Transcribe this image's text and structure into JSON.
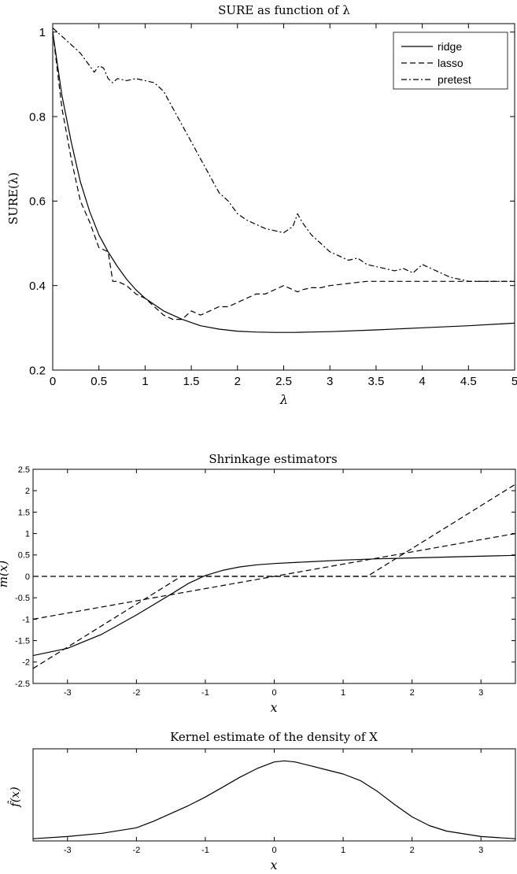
{
  "chart_data": [
    {
      "type": "line",
      "title": "SURE as function of λ",
      "xlabel": "λ",
      "ylabel": "SURE(λ)",
      "xlim": [
        0,
        5
      ],
      "ylim": [
        0.2,
        1.02
      ],
      "xticks": [
        "0",
        "0.5",
        "1",
        "1.5",
        "2",
        "2.5",
        "3",
        "3.5",
        "4",
        "4.5",
        "5"
      ],
      "yticks": [
        "0.2",
        "0.4",
        "0.6",
        "0.8",
        "1"
      ],
      "legend_position": "top-right",
      "grid": false,
      "series": [
        {
          "name": "ridge",
          "style": "solid",
          "x": [
            0,
            0.1,
            0.2,
            0.3,
            0.4,
            0.5,
            0.6,
            0.7,
            0.8,
            0.9,
            1.0,
            1.2,
            1.4,
            1.6,
            1.8,
            2.0,
            2.2,
            2.4,
            2.6,
            2.8,
            3.0,
            3.5,
            4.0,
            4.5,
            5.0
          ],
          "y": [
            1.0,
            0.85,
            0.74,
            0.645,
            0.575,
            0.52,
            0.48,
            0.445,
            0.415,
            0.39,
            0.37,
            0.34,
            0.32,
            0.305,
            0.297,
            0.292,
            0.29,
            0.289,
            0.289,
            0.29,
            0.291,
            0.295,
            0.3,
            0.305,
            0.311
          ]
        },
        {
          "name": "lasso",
          "style": "dashed",
          "x": [
            0,
            0.1,
            0.2,
            0.3,
            0.4,
            0.5,
            0.6,
            0.65,
            0.7,
            0.8,
            0.9,
            1.0,
            1.1,
            1.2,
            1.3,
            1.4,
            1.5,
            1.6,
            1.7,
            1.8,
            1.9,
            2.0,
            2.1,
            2.2,
            2.3,
            2.4,
            2.5,
            2.6,
            2.65,
            2.7,
            2.8,
            2.9,
            3.0,
            3.2,
            3.4,
            3.6,
            3.8,
            4.0,
            4.2,
            4.5,
            5.0
          ],
          "y": [
            1.0,
            0.82,
            0.7,
            0.6,
            0.55,
            0.49,
            0.48,
            0.41,
            0.41,
            0.4,
            0.38,
            0.37,
            0.35,
            0.33,
            0.32,
            0.32,
            0.34,
            0.33,
            0.34,
            0.35,
            0.35,
            0.36,
            0.37,
            0.38,
            0.38,
            0.39,
            0.4,
            0.39,
            0.385,
            0.39,
            0.395,
            0.395,
            0.4,
            0.405,
            0.41,
            0.41,
            0.41,
            0.41,
            0.41,
            0.41,
            0.41
          ]
        },
        {
          "name": "pretest",
          "style": "dashdot",
          "x": [
            0,
            0.1,
            0.2,
            0.3,
            0.4,
            0.45,
            0.5,
            0.55,
            0.6,
            0.65,
            0.7,
            0.8,
            0.9,
            1.0,
            1.1,
            1.2,
            1.3,
            1.4,
            1.5,
            1.6,
            1.7,
            1.8,
            1.9,
            2.0,
            2.1,
            2.2,
            2.3,
            2.4,
            2.5,
            2.6,
            2.65,
            2.7,
            2.8,
            2.9,
            3.0,
            3.1,
            3.2,
            3.3,
            3.4,
            3.5,
            3.6,
            3.7,
            3.8,
            3.9,
            4.0,
            4.1,
            4.2,
            4.3,
            4.4,
            4.5,
            5.0
          ],
          "y": [
            1.01,
            0.99,
            0.97,
            0.95,
            0.92,
            0.905,
            0.92,
            0.915,
            0.89,
            0.88,
            0.89,
            0.885,
            0.89,
            0.885,
            0.88,
            0.86,
            0.82,
            0.78,
            0.74,
            0.7,
            0.66,
            0.62,
            0.6,
            0.57,
            0.555,
            0.545,
            0.535,
            0.53,
            0.525,
            0.54,
            0.57,
            0.55,
            0.52,
            0.5,
            0.48,
            0.47,
            0.46,
            0.465,
            0.45,
            0.445,
            0.44,
            0.435,
            0.44,
            0.43,
            0.45,
            0.44,
            0.43,
            0.42,
            0.415,
            0.41,
            0.41
          ]
        }
      ]
    },
    {
      "type": "line",
      "title": "Shrinkage estimators",
      "xlabel": "x",
      "ylabel": "m(x)",
      "xlim": [
        -3.5,
        3.5
      ],
      "ylim": [
        -2.5,
        2.5
      ],
      "xticks": [
        "-3",
        "-2",
        "-1",
        "0",
        "1",
        "2",
        "3"
      ],
      "yticks": [
        "-2.5",
        "-2",
        "-1.5",
        "-1",
        "-0.5",
        "0",
        "0.5",
        "1",
        "1.5",
        "2",
        "2.5"
      ],
      "grid": false,
      "series": [
        {
          "style": "solid",
          "x": [
            -3.5,
            -3.0,
            -2.5,
            -2.0,
            -1.5,
            -1.25,
            -1.0,
            -0.75,
            -0.5,
            -0.25,
            0,
            0.5,
            1.0,
            1.5,
            2.0,
            2.5,
            3.0,
            3.5
          ],
          "y": [
            -1.85,
            -1.68,
            -1.35,
            -0.9,
            -0.42,
            -0.17,
            0.02,
            0.14,
            0.22,
            0.27,
            0.3,
            0.34,
            0.38,
            0.41,
            0.43,
            0.45,
            0.47,
            0.49
          ]
        },
        {
          "style": "dashed",
          "x": [
            -3.5,
            3.5
          ],
          "y": [
            -1.0,
            1.0
          ]
        },
        {
          "style": "dashed",
          "x": [
            -3.5,
            -1.35,
            1.35,
            3.5
          ],
          "y": [
            -2.15,
            0,
            0,
            2.15
          ]
        },
        {
          "style": "dashed",
          "x": [
            -3.5,
            3.5
          ],
          "y": [
            0,
            0
          ]
        }
      ]
    },
    {
      "type": "area",
      "title": "Kernel estimate of the density of X",
      "xlabel": "x",
      "ylabel": "f̂(x)",
      "xlim": [
        -3.5,
        3.5
      ],
      "ylim": [
        0,
        0.42
      ],
      "xticks": [
        "-3",
        "-2",
        "-1",
        "0",
        "1",
        "2",
        "3"
      ],
      "grid": false,
      "series": [
        {
          "style": "solid",
          "x": [
            -3.5,
            -3.0,
            -2.5,
            -2.0,
            -1.75,
            -1.5,
            -1.25,
            -1.0,
            -0.75,
            -0.5,
            -0.25,
            0,
            0.15,
            0.3,
            0.5,
            0.75,
            1.0,
            1.25,
            1.5,
            1.75,
            2.0,
            2.25,
            2.5,
            3.0,
            3.5
          ],
          "y": [
            0.01,
            0.02,
            0.035,
            0.06,
            0.09,
            0.125,
            0.16,
            0.2,
            0.245,
            0.29,
            0.33,
            0.36,
            0.365,
            0.36,
            0.345,
            0.325,
            0.305,
            0.275,
            0.225,
            0.165,
            0.11,
            0.07,
            0.045,
            0.02,
            0.01
          ]
        }
      ]
    }
  ]
}
